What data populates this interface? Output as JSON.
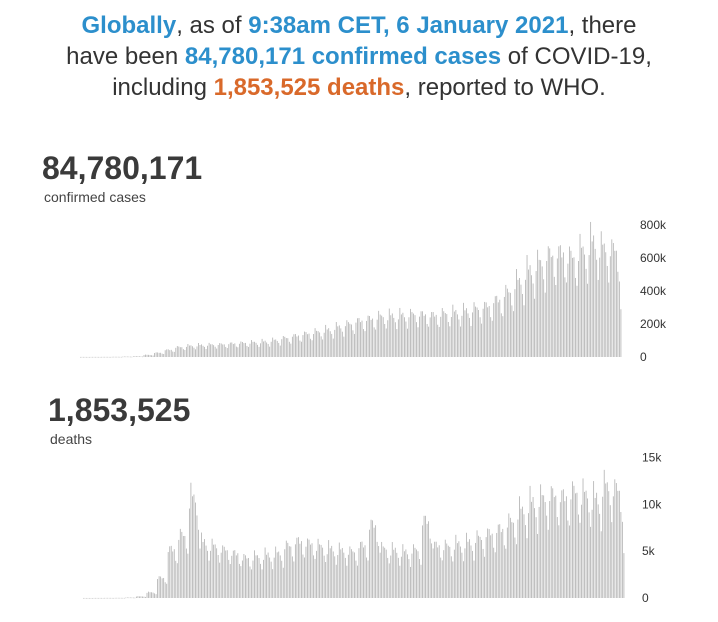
{
  "headline": {
    "p1": "Globally",
    "p2": ", as of ",
    "p3": "9:38am CET, 6 January 2021",
    "p4": ", there",
    "p5": "have been ",
    "p6": "84,780,171 confirmed cases",
    "p7": " of COVID-19,",
    "p8": "including ",
    "p9": "1,853,525 deaths",
    "p10": ", reported to WHO."
  },
  "colors": {
    "accent_blue": "#2c8fcc",
    "accent_orange": "#d9692a",
    "bar": "#b3b3b3"
  },
  "chart_data": [
    {
      "type": "bar",
      "total": "84,780,171",
      "label": "confirmed cases",
      "ylim": [
        0,
        850000
      ],
      "yticks": [
        0,
        200000,
        400000,
        600000,
        800000
      ],
      "ytick_labels": [
        "0",
        "200k",
        "400k",
        "600k",
        "800k"
      ],
      "weekly_max": [
        600,
        800,
        1000,
        1500,
        3000,
        5000,
        15000,
        30000,
        50000,
        70000,
        80000,
        85000,
        88000,
        90000,
        95000,
        100000,
        105000,
        110000,
        120000,
        135000,
        150000,
        165000,
        180000,
        195000,
        215000,
        235000,
        255000,
        270000,
        290000,
        295000,
        300000,
        305000,
        300000,
        295000,
        310000,
        320000,
        330000,
        345000,
        360000,
        400000,
        460000,
        540000,
        620000,
        670000,
        720000,
        730000,
        710000,
        760000,
        820000,
        780000,
        760000
      ],
      "last_value": 290000
    },
    {
      "type": "bar",
      "total": "1,853,525",
      "label": "deaths",
      "ylim": [
        0,
        15500
      ],
      "yticks": [
        0,
        5000,
        10000,
        15000
      ],
      "ytick_labels": [
        "0",
        "5k",
        "10k",
        "15k"
      ],
      "weekly_max": [
        5,
        10,
        15,
        20,
        60,
        200,
        700,
        2500,
        6000,
        7800,
        12500,
        7000,
        6500,
        6000,
        5500,
        5000,
        5200,
        5400,
        5600,
        6500,
        7000,
        6800,
        6500,
        6200,
        6000,
        5800,
        6500,
        9000,
        6200,
        6000,
        5800,
        6000,
        9500,
        6500,
        6500,
        6800,
        7000,
        7500,
        8000,
        8500,
        9500,
        11000,
        12000,
        12500,
        12800,
        12500,
        13200,
        13000,
        12500,
        14000,
        13500
      ],
      "last_value": 4800
    }
  ]
}
